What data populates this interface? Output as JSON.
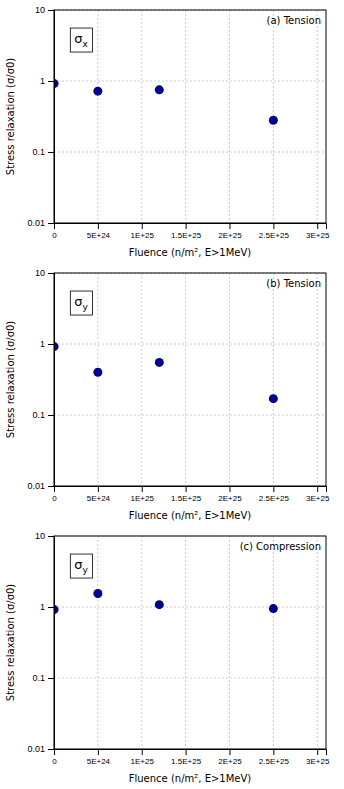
{
  "chart_data": [
    {
      "type": "scatter",
      "annotations": [
        "σx",
        "(a) Tension"
      ],
      "xlabel": "Fluence (n/m², E>1MeV)",
      "ylabel": "Stress relaxation (σ/σ0)",
      "x": [
        1e+22,
        5e+24,
        1.2e+25,
        2.5e+25
      ],
      "values": [
        0.92,
        0.72,
        0.75,
        0.28
      ],
      "color": "#00008B",
      "log": "y",
      "grid": true,
      "xlim": [
        0,
        3.1e+25
      ],
      "xticks": [
        0,
        {
          "value": 5e+24,
          "label": "5E+24"
        },
        {
          "value": 1e+25,
          "label": "1E+25"
        },
        {
          "value": 1.5e+25,
          "label": "1.5E+25"
        },
        {
          "value": 2e+25,
          "label": "2E+25"
        },
        {
          "value": 2.5e+25,
          "label": "2.5E+25"
        },
        {
          "value": 3e+25,
          "label": "3E+25"
        }
      ],
      "ylim": [
        0.01,
        10
      ],
      "yticks": [
        0.01,
        0.1,
        1,
        10
      ]
    },
    {
      "type": "scatter",
      "annotations": [
        "σy",
        "(b) Tension"
      ],
      "xlabel": "Fluence (n/m², E>1MeV)",
      "ylabel": "Stress relaxation (σ/σ0)",
      "x": [
        1e+22,
        5e+24,
        1.2e+25,
        2.5e+25
      ],
      "values": [
        0.92,
        0.4,
        0.55,
        0.17
      ],
      "color": "#00008B",
      "log": "y",
      "grid": true,
      "xlim": [
        0,
        3.1e+25
      ],
      "xticks": [
        0,
        {
          "value": 5e+24,
          "label": "5E+24"
        },
        {
          "value": 1e+25,
          "label": "1E+25"
        },
        {
          "value": 1.5e+25,
          "label": "1.5E+25"
        },
        {
          "value": 2e+25,
          "label": "2E+25"
        },
        {
          "value": 2.5e+25,
          "label": "2.5E+25"
        },
        {
          "value": 3e+25,
          "label": "3E+25"
        }
      ],
      "ylim": [
        0.01,
        10
      ],
      "yticks": [
        0.01,
        0.1,
        1,
        10
      ]
    },
    {
      "type": "scatter",
      "annotations": [
        "σy",
        "(c) Compression"
      ],
      "xlabel": "Fluence (n/m², E>1MeV)",
      "ylabel": "Stress relaxation (σ/σ0)",
      "x": [
        1e+22,
        5e+24,
        1.2e+25,
        2.5e+25
      ],
      "values": [
        0.92,
        1.55,
        1.08,
        0.95
      ],
      "color": "#00008B",
      "log": "y",
      "grid": true,
      "xlim": [
        0,
        3.1e+25
      ],
      "xticks": [
        0,
        {
          "value": 5e+24,
          "label": "5E+24"
        },
        {
          "value": 1e+25,
          "label": "1E+25"
        },
        {
          "value": 1.5e+25,
          "label": "1.5E+25"
        },
        {
          "value": 2e+25,
          "label": "2E+25"
        },
        {
          "value": 2.5e+25,
          "label": "2.5E+25"
        },
        {
          "value": 3e+25,
          "label": "3E+25"
        }
      ],
      "ylim": [
        0.01,
        10
      ],
      "yticks": [
        0.01,
        0.1,
        1,
        10
      ]
    }
  ]
}
